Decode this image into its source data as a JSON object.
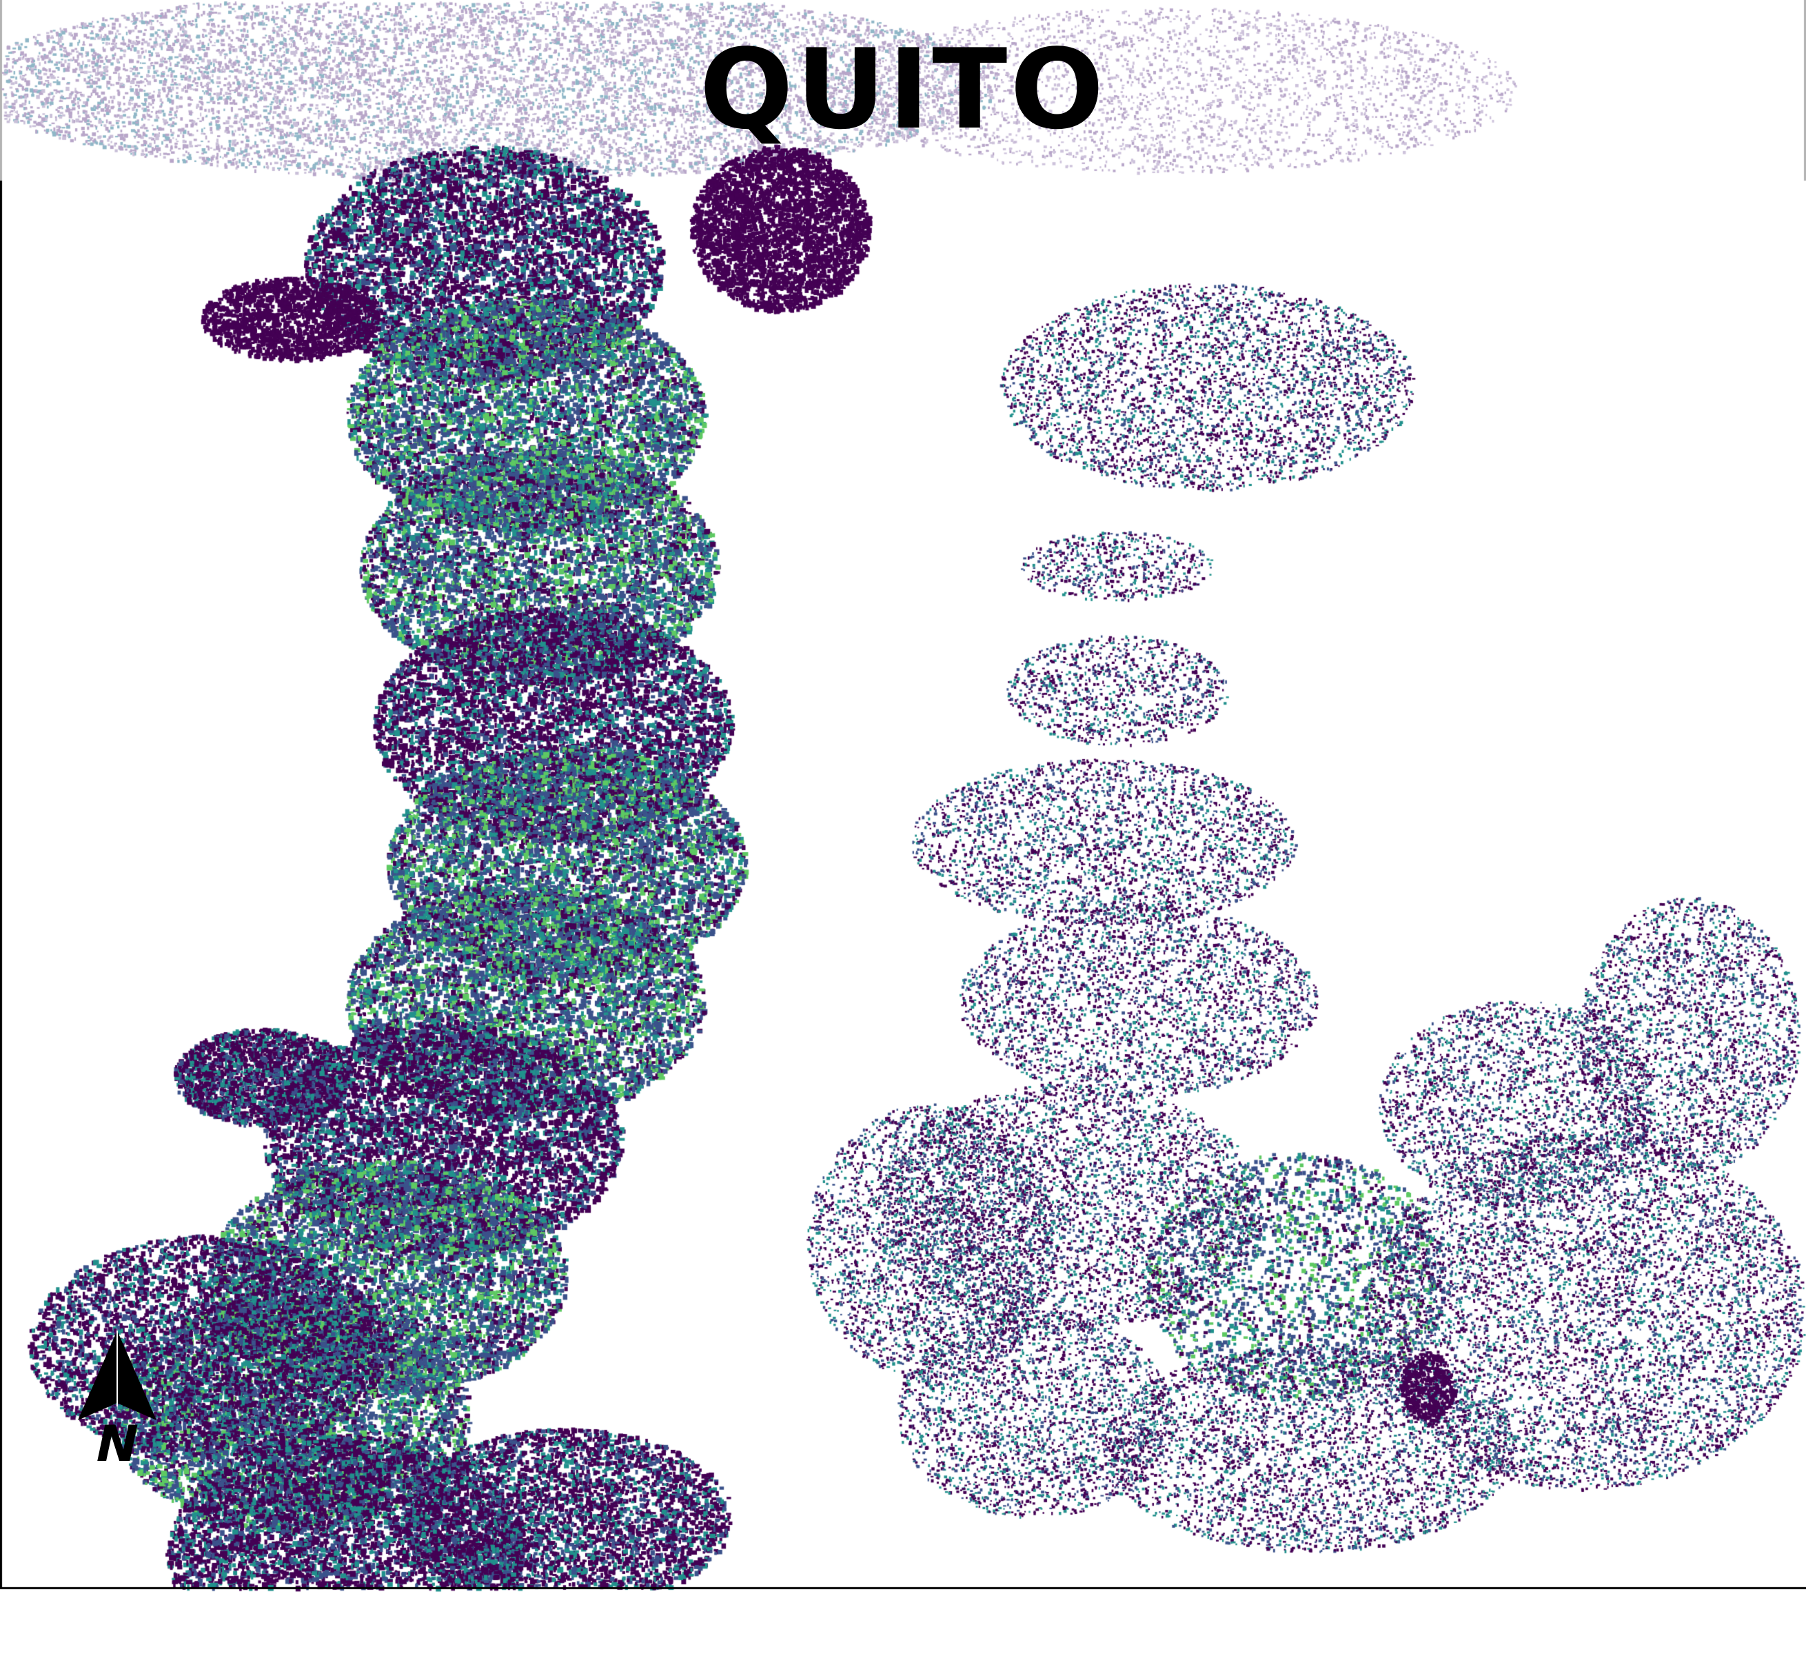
{
  "map": {
    "title": "QUITO",
    "north_label": "N",
    "colors": {
      "background": "#ffffff",
      "frame": "#000000",
      "header_band": "#b3b3b3",
      "faded_buildings": "#b8a6c9",
      "dense_buildings": "#440154",
      "mid_buildings": "#3b528b",
      "light_buildings": "#21918c",
      "rare_buildings": "#5ec962",
      "title_text": "#000000"
    },
    "icons": {
      "north_arrow": "north-arrow-icon"
    }
  }
}
